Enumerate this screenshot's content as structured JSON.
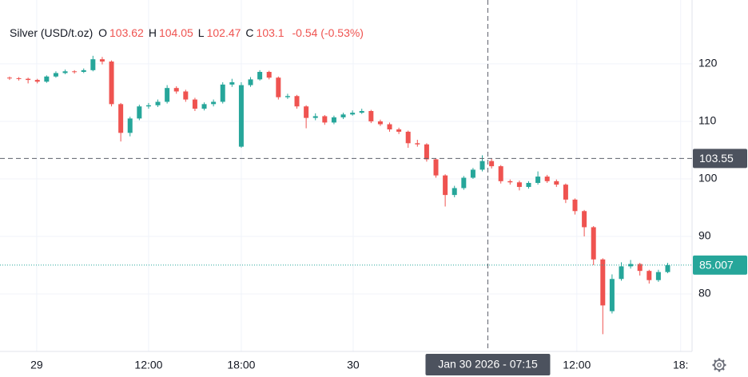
{
  "chart_data": {
    "type": "candlestick",
    "title": "Silver (USD/t.oz)",
    "ohlc_legend": [
      {
        "label": "O",
        "value": 103.62
      },
      {
        "label": "H",
        "value": 104.05
      },
      {
        "label": "L",
        "value": 102.47
      },
      {
        "label": "C",
        "value": 103.1
      }
    ],
    "change": "-0.54 (-0.53%)",
    "open": [
      117.6,
      117.5,
      117.4,
      117.2,
      116.9,
      117.8,
      118.4,
      118.7,
      118.6,
      118.9,
      120.8,
      120.4,
      113.0,
      108.0,
      110.5,
      112.6,
      112.8,
      113.4,
      115.8,
      115.2,
      113.8,
      112.2,
      113.0,
      113.4,
      116.4,
      105.6,
      116.3,
      117.3,
      118.6,
      117.6,
      114.2,
      114.4,
      112.6,
      110.6,
      110.9,
      109.8,
      110.7,
      111.2,
      111.5,
      111.8,
      110.0,
      109.5,
      108.6,
      108.2,
      106.2,
      106.0,
      103.4,
      100.6,
      97.2,
      98.4,
      100.2,
      101.6,
      103.1,
      102.2,
      99.6,
      99.4,
      98.6,
      99.3,
      100.4,
      99.6,
      99.0,
      96.4,
      94.4,
      91.6,
      86.0,
      77.0,
      82.6,
      84.8,
      85.2,
      84.0,
      82.4,
      83.8
    ],
    "high": [
      117.8,
      117.7,
      117.6,
      117.4,
      118.0,
      118.7,
      119.0,
      118.9,
      119.2,
      121.4,
      121.2,
      120.6,
      113.2,
      110.8,
      112.9,
      113.2,
      113.8,
      116.3,
      116.1,
      115.5,
      114.1,
      113.3,
      113.8,
      116.8,
      117.4,
      116.8,
      117.7,
      118.9,
      118.8,
      117.8,
      114.8,
      114.6,
      112.8,
      111.4,
      111.1,
      111.0,
      111.5,
      111.9,
      112.2,
      112.0,
      110.3,
      109.8,
      108.9,
      108.4,
      106.8,
      106.2,
      103.6,
      100.8,
      98.8,
      100.5,
      101.9,
      104.1,
      103.5,
      102.4,
      99.9,
      99.7,
      99.6,
      101.3,
      100.7,
      99.9,
      99.2,
      96.6,
      94.6,
      91.8,
      86.2,
      83.4,
      85.5,
      85.9,
      85.4,
      84.2,
      84.2,
      85.4
    ],
    "low": [
      117.2,
      117.1,
      116.6,
      116.6,
      116.7,
      117.6,
      118.2,
      118.3,
      118.4,
      118.7,
      119.9,
      112.6,
      106.5,
      107.4,
      110.2,
      112.2,
      112.5,
      113.1,
      114.8,
      113.4,
      111.8,
      111.9,
      112.6,
      113.1,
      116.0,
      105.4,
      116.0,
      117.1,
      117.3,
      113.8,
      113.9,
      112.2,
      108.8,
      110.2,
      109.4,
      109.5,
      110.4,
      111.0,
      111.3,
      109.7,
      109.2,
      108.2,
      107.8,
      105.4,
      105.6,
      103.0,
      100.2,
      95.2,
      96.8,
      98.1,
      100.0,
      101.3,
      101.8,
      99.2,
      99.0,
      98.0,
      98.3,
      99.0,
      99.3,
      98.6,
      95.8,
      93.8,
      90.0,
      85.0,
      73.0,
      76.6,
      82.3,
      84.4,
      83.2,
      81.8,
      82.1,
      83.6
    ],
    "close": [
      117.5,
      117.4,
      117.2,
      116.9,
      117.8,
      118.4,
      118.7,
      118.6,
      118.9,
      120.8,
      120.4,
      113.0,
      108.0,
      110.5,
      112.6,
      112.8,
      113.4,
      115.8,
      115.2,
      113.8,
      112.2,
      113.0,
      113.4,
      116.4,
      116.8,
      116.3,
      117.3,
      118.6,
      117.6,
      114.2,
      114.4,
      112.6,
      110.6,
      110.9,
      109.8,
      110.7,
      111.2,
      111.5,
      111.8,
      110.0,
      109.5,
      108.6,
      108.2,
      106.2,
      106.0,
      103.4,
      100.6,
      97.2,
      98.4,
      100.2,
      101.6,
      103.1,
      102.2,
      99.6,
      99.4,
      98.6,
      99.3,
      100.4,
      99.6,
      99.0,
      96.4,
      94.4,
      91.6,
      86.0,
      78.0,
      82.6,
      84.8,
      85.2,
      84.0,
      82.4,
      83.8,
      85.0
    ],
    "up_color": "#26a69a",
    "down_color": "#ef5350",
    "ylim": [
      70,
      131.1
    ],
    "yticks": [
      80,
      90,
      100,
      110,
      120
    ],
    "xlim": [
      -1.03,
      73.63
    ],
    "xticks": [
      {
        "value": 2.93,
        "label": "29"
      },
      {
        "value": 15,
        "label": "12:00"
      },
      {
        "value": 25,
        "label": "18:00"
      },
      {
        "value": 37.07,
        "label": "30"
      },
      {
        "value": 61.2,
        "label": "12:00"
      },
      {
        "value": 72.4,
        "label": "18:"
      }
    ],
    "grid": true,
    "crosshair": {
      "x": 51.6,
      "x_label": "Jan 30 2026 - 07:15",
      "y": 103.55
    },
    "last_price": 85.007
  }
}
